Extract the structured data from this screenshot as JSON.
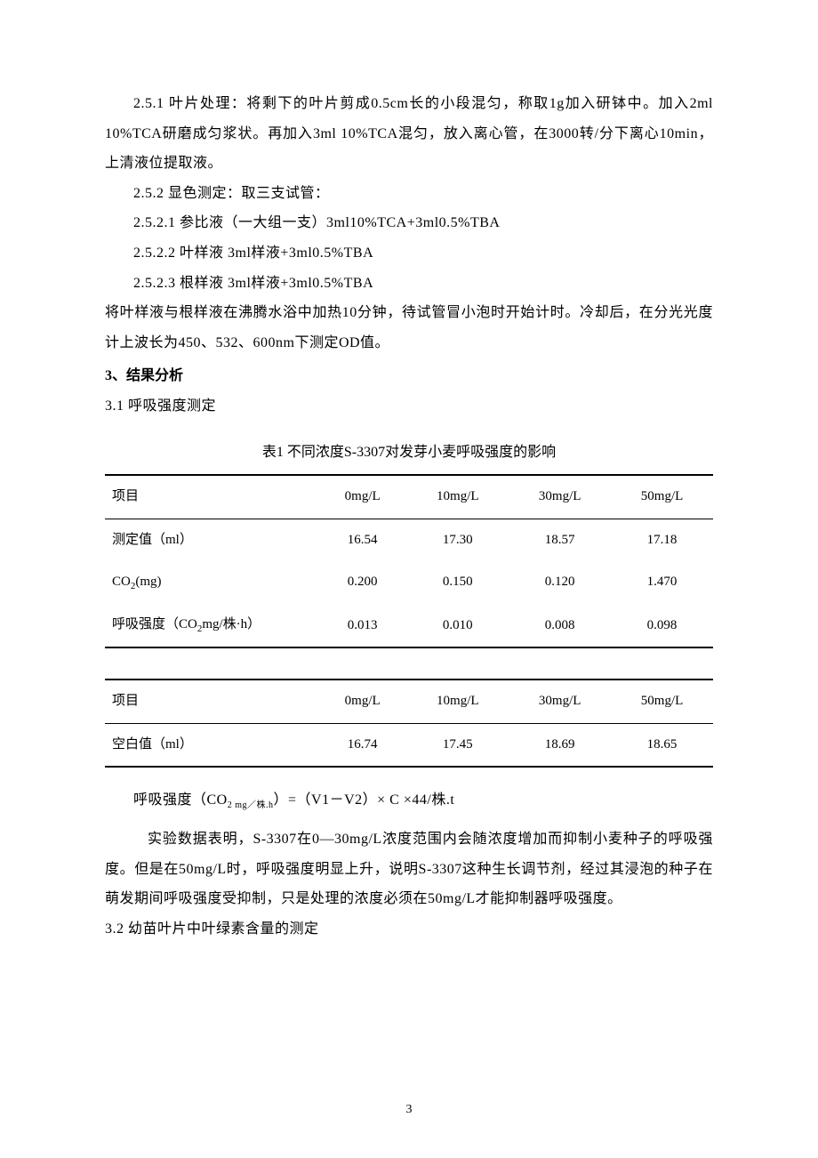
{
  "p251": "2.5.1 叶片处理：将剩下的叶片剪成0.5cm长的小段混匀，称取1g加入研钵中。加入2ml 10%TCA研磨成匀浆状。再加入3ml 10%TCA混匀，放入离心管，在3000转/分下离心10min，上清液位提取液。",
  "p252": "2.5.2 显色测定：取三支试管：",
  "p2521": "2.5.2.1 参比液（一大组一支）3ml10%TCA+3ml0.5%TBA",
  "p2522": "2.5.2.2 叶样液 3ml样液+3ml0.5%TBA",
  "p2523": "2.5.2.3 根样液 3ml样液+3ml0.5%TBA",
  "p_boil": "将叶样液与根样液在沸腾水浴中加热10分钟，待试管冒小泡时开始计时。冷却后，在分光光度计上波长为450、532、600nm下测定OD值。",
  "h3": "3、结果分析",
  "h31": "3.1 呼吸强度测定",
  "table1": {
    "caption": "表1 不同浓度S-3307对发芽小麦呼吸强度的影响",
    "header": [
      "项目",
      "0mg/L",
      "10mg/L",
      "30mg/L",
      "50mg/L"
    ],
    "rows": [
      {
        "label": "测定值（ml）",
        "c1": "16.54",
        "c2": "17.30",
        "c3": "18.57",
        "c4": "17.18"
      },
      {
        "label_prefix": "CO",
        "label_sub": "2",
        "label_suffix": "(mg)",
        "c1": "0.200",
        "c2": "0.150",
        "c3": "0.120",
        "c4": "1.470"
      },
      {
        "label_prefix": "呼吸强度（CO",
        "label_sub": "2",
        "label_suffix": "mg/株·h）",
        "c1": "0.013",
        "c2": "0.010",
        "c3": "0.008",
        "c4": "0.098"
      }
    ]
  },
  "table2": {
    "header": [
      "项目",
      "0mg/L",
      "10mg/L",
      "30mg/L",
      "50mg/L"
    ],
    "rows": [
      {
        "label": "空白值（ml）",
        "c1": "16.74",
        "c2": "17.45",
        "c3": "18.69",
        "c4": "18.65"
      }
    ]
  },
  "formula_prefix": "呼吸强度（CO",
  "formula_sub1": "2",
  "formula_sub2": " mg／株.h",
  "formula_suffix": "）=（V1－V2）× C ×44/株.t",
  "analysis": "实验数据表明，S-3307在0—30mg/L浓度范围内会随浓度增加而抑制小麦种子的呼吸强度。但是在50mg/L时，呼吸强度明显上升，说明S-3307这种生长调节剂，经过其浸泡的种子在萌发期间呼吸强度受抑制，只是处理的浓度必须在50mg/L才能抑制器呼吸强度。",
  "h32": "3.2 幼苗叶片中叶绿素含量的测定",
  "page_number": "3"
}
